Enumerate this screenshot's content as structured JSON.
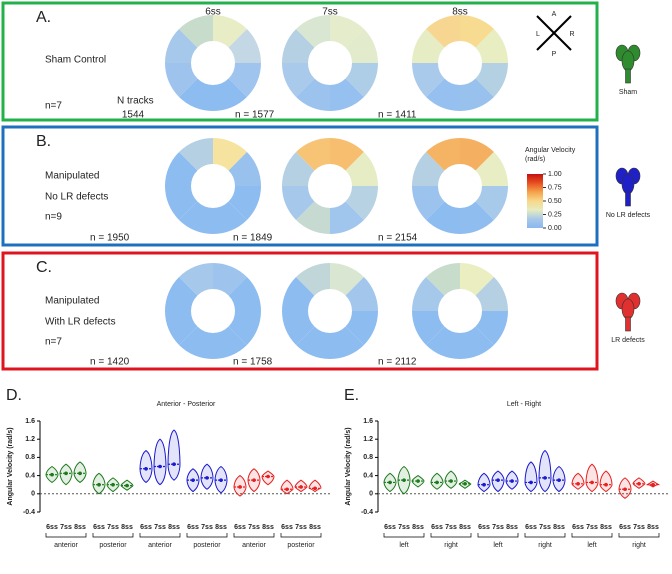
{
  "stages": [
    "6ss",
    "7ss",
    "8ss"
  ],
  "compass": {
    "anterior": "A",
    "posterior": "P",
    "left": "L",
    "right": "R"
  },
  "colorbar": {
    "title": [
      "Angular Velocity",
      "(rad/s)"
    ],
    "ticks": [
      {
        "value": 1,
        "label": "1.00"
      },
      {
        "value": 0.75,
        "label": "0.75"
      },
      {
        "value": 0.5,
        "label": "0.50"
      },
      {
        "value": 0.25,
        "label": "0.25"
      },
      {
        "value": 0,
        "label": "0.00"
      }
    ],
    "colors": [
      "#8ab8f0",
      "#a8c8e8",
      "#e6ecc0",
      "#f6d98a",
      "#f5a24a",
      "#e85020",
      "#c41010"
    ]
  },
  "panels": [
    {
      "label": "A.",
      "condition": [
        "Sham Control",
        "n=7"
      ],
      "tracks_label": "N tracks",
      "counts": [
        "1544",
        "n = 1577",
        "n = 1411"
      ],
      "group": "Sham",
      "color": "#2e8b2e",
      "border": "#22b04b",
      "donuts": [
        [
          "#e8edc6",
          "#c3d8e4",
          "#9fc5ee",
          "#8dbcf0",
          "#8dbcf0",
          "#9ec4ee",
          "#a6c8ea",
          "#c8dccc"
        ],
        [
          "#e4eccb",
          "#e2ebcc",
          "#aecde6",
          "#96c0ef",
          "#9cc3ee",
          "#a9caea",
          "#b4d0e2",
          "#d9e6d2"
        ],
        [
          "#f7db90",
          "#e8edc2",
          "#b4d1e4",
          "#98c1ee",
          "#96c0ef",
          "#a9caea",
          "#e6ecc4",
          "#f6d690"
        ]
      ]
    },
    {
      "label": "B.",
      "condition": [
        "Manipulated",
        "No LR defects",
        "n=9"
      ],
      "counts": [
        "n = 1950",
        "n = 1849",
        "n = 2154"
      ],
      "group": "No LR defects",
      "color": "#2020c8",
      "border": "#1f6fc0",
      "donuts": [
        [
          "#f7e3a0",
          "#98c1ee",
          "#8dbcf0",
          "#8dbcf0",
          "#8dbcf0",
          "#8dbcf0",
          "#8dbcf0",
          "#b4d0e2"
        ],
        [
          "#f6be6e",
          "#e6ecc4",
          "#b7d2e2",
          "#a0c6ee",
          "#c6dad2",
          "#a6c8ea",
          "#b4d0e2",
          "#f6c474"
        ],
        [
          "#f4b060",
          "#e8edc4",
          "#a7c9ea",
          "#90bdf0",
          "#8dbcf0",
          "#9cc3ee",
          "#b4d0e2",
          "#f4b464"
        ]
      ]
    },
    {
      "label": "C.",
      "condition": [
        "Manipulated",
        "With LR defects",
        "n=7"
      ],
      "counts": [
        "n = 1420",
        "n = 1758",
        "n = 2112"
      ],
      "group": "LR defects",
      "color": "#e03030",
      "border": "#e0141e",
      "donuts": [
        [
          "#9ec4ee",
          "#8dbcf0",
          "#8dbcf0",
          "#8dbcf0",
          "#8dbcf0",
          "#8dbcf0",
          "#8dbcf0",
          "#a6c8ea"
        ],
        [
          "#d9e6d2",
          "#a2c6ec",
          "#8dbcf0",
          "#8dbcf0",
          "#8dbcf0",
          "#8dbcf0",
          "#8dbcf0",
          "#c0d6d8"
        ],
        [
          "#eaeec0",
          "#b4d0e2",
          "#8dbcf0",
          "#8dbcf0",
          "#8dbcf0",
          "#8dbcf0",
          "#a6c8ea",
          "#c8dccc"
        ]
      ]
    }
  ],
  "chart_data": [
    {
      "type": "violin",
      "label": "D.",
      "title": "Anterior - Posterior",
      "ylabel": "Angular Velocity (rad/s)",
      "ylim": [
        -0.4,
        1.6
      ],
      "yticks": [
        -0.4,
        0,
        0.4,
        0.8,
        1.2,
        1.6
      ],
      "categories": [
        "6ss",
        "7ss",
        "8ss",
        "6ss",
        "7ss",
        "8ss",
        "6ss",
        "7ss",
        "8ss",
        "6ss",
        "7ss",
        "8ss",
        "6ss",
        "7ss",
        "8ss",
        "6ss",
        "7ss",
        "8ss"
      ],
      "groups": [
        "anterior",
        "posterior",
        "anterior",
        "posterior",
        "anterior",
        "posterior"
      ],
      "series": [
        {
          "color": "#1e7a1e",
          "values": [
            0.42,
            0.45,
            0.45,
            0.2,
            0.2,
            0.18
          ],
          "min": [
            0.25,
            0.2,
            0.25,
            0,
            0.05,
            0.08
          ],
          "max": [
            0.6,
            0.65,
            0.7,
            0.45,
            0.35,
            0.3
          ]
        },
        {
          "color": "#1a1ad0",
          "values": [
            0.55,
            0.6,
            0.65,
            0.3,
            0.35,
            0.3
          ],
          "min": [
            0.25,
            0.2,
            0.3,
            0.05,
            0.1,
            0.02
          ],
          "max": [
            0.95,
            1.2,
            1.4,
            0.55,
            0.65,
            0.6
          ]
        },
        {
          "color": "#e82020",
          "values": [
            0.15,
            0.3,
            0.38,
            0.1,
            0.15,
            0.12
          ],
          "min": [
            -0.05,
            0.05,
            0.2,
            0,
            0.05,
            0.05
          ],
          "max": [
            0.4,
            0.55,
            0.5,
            0.3,
            0.3,
            0.3
          ]
        }
      ]
    },
    {
      "type": "violin",
      "label": "E.",
      "title": "Left - Right",
      "ylabel": "Angular Velocity (rad/s)",
      "ylim": [
        -0.4,
        1.6
      ],
      "yticks": [
        -0.4,
        0,
        0.4,
        0.8,
        1.2,
        1.6
      ],
      "categories": [
        "6ss",
        "7ss",
        "8ss",
        "6ss",
        "7ss",
        "8ss",
        "6ss",
        "7ss",
        "8ss",
        "6ss",
        "7ss",
        "8ss",
        "6ss",
        "7ss",
        "8ss",
        "6ss",
        "7ss",
        "8ss"
      ],
      "groups": [
        "left",
        "right",
        "left",
        "right",
        "left",
        "right"
      ],
      "series": [
        {
          "color": "#1e7a1e",
          "values": [
            0.25,
            0.3,
            0.28,
            0.25,
            0.28,
            0.22
          ],
          "min": [
            0.05,
            0,
            0.15,
            0.1,
            0.12,
            0.12
          ],
          "max": [
            0.45,
            0.6,
            0.4,
            0.45,
            0.5,
            0.3
          ]
        },
        {
          "color": "#1a1ad0",
          "values": [
            0.2,
            0.3,
            0.28,
            0.25,
            0.35,
            0.3
          ],
          "min": [
            0.05,
            0.05,
            0.1,
            0.05,
            0.05,
            0.05
          ],
          "max": [
            0.45,
            0.5,
            0.5,
            0.7,
            0.95,
            0.6
          ]
        },
        {
          "color": "#e82020",
          "values": [
            0.22,
            0.25,
            0.2,
            0.1,
            0.22,
            0.2
          ],
          "min": [
            0.1,
            0.05,
            0.05,
            -0.1,
            0.12,
            0.15
          ],
          "max": [
            0.45,
            0.65,
            0.5,
            0.35,
            0.35,
            0.28
          ]
        }
      ]
    }
  ]
}
